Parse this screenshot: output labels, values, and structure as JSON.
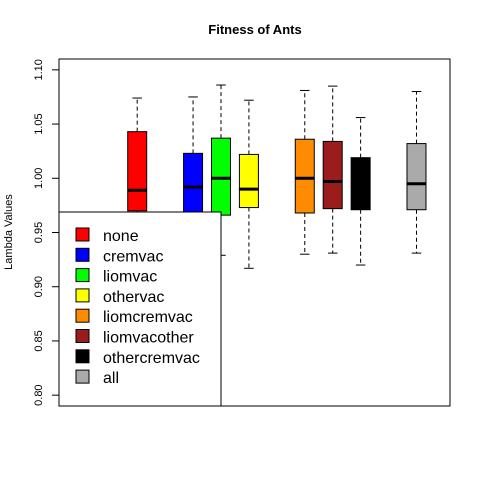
{
  "chart_data": {
    "type": "boxplot",
    "title": "Fitness of Ants",
    "xlabel": "",
    "ylabel": "Lambda Values",
    "ylim": [
      0.79,
      1.11
    ],
    "yticks": [
      "0.80",
      "0.85",
      "0.90",
      "0.95",
      "1.00",
      "1.05",
      "1.10"
    ],
    "series": [
      {
        "name": "none",
        "color": "#ff0000",
        "position": 3,
        "min": 0.925,
        "q1": 0.97,
        "median": 0.989,
        "q3": 1.043,
        "max": 1.074
      },
      {
        "name": "cremvac",
        "color": "#0000ff",
        "position": 5,
        "min": 0.913,
        "q1": 0.962,
        "median": 0.992,
        "q3": 1.023,
        "max": 1.075
      },
      {
        "name": "liomvac",
        "color": "#00ff00",
        "position": 6,
        "min": 0.929,
        "q1": 0.966,
        "median": 1.0,
        "q3": 1.037,
        "max": 1.086
      },
      {
        "name": "othervac",
        "color": "#ffff00",
        "position": 7,
        "min": 0.917,
        "q1": 0.973,
        "median": 0.99,
        "q3": 1.022,
        "max": 1.072
      },
      {
        "name": "liomcremvac",
        "color": "#ff8c00",
        "position": 9,
        "min": 0.93,
        "q1": 0.968,
        "median": 1.0,
        "q3": 1.036,
        "max": 1.081
      },
      {
        "name": "liomvacother",
        "color": "#9b1c1c",
        "position": 10,
        "min": 0.931,
        "q1": 0.972,
        "median": 0.997,
        "q3": 1.034,
        "max": 1.085
      },
      {
        "name": "othercremvac",
        "color": "#000000",
        "position": 11,
        "min": 0.92,
        "q1": 0.971,
        "median": 0.99,
        "q3": 1.019,
        "max": 1.056
      },
      {
        "name": "all",
        "color": "#aaaaaa",
        "position": 13,
        "min": 0.931,
        "q1": 0.971,
        "median": 0.995,
        "q3": 1.032,
        "max": 1.08
      }
    ],
    "legend_position": "bottom-left",
    "legend_entries": [
      "none",
      "cremvac",
      "liomvac",
      "othervac",
      "liomcremvac",
      "liomvacother",
      "othercremvac",
      "all"
    ]
  }
}
